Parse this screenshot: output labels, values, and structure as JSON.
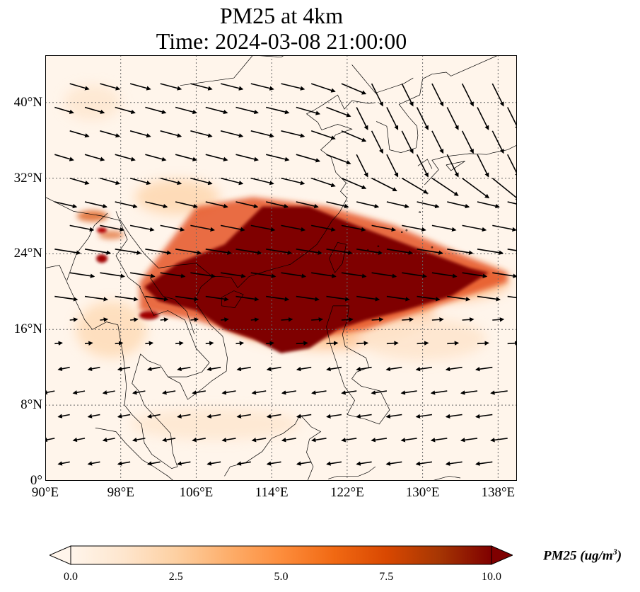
{
  "title": {
    "line1": "PM25 at 4km",
    "line2": "Time: 2024-03-08 21:00:00"
  },
  "map": {
    "projection": "PlateCarree",
    "lon_range": [
      90,
      140
    ],
    "lat_range": [
      0,
      45
    ],
    "gridlines": "dotted",
    "coastlines": true,
    "wind_vectors": true,
    "lat_ticks": [
      {
        "value": 0,
        "label": "0°"
      },
      {
        "value": 8,
        "label": "8°N"
      },
      {
        "value": 16,
        "label": "16°N"
      },
      {
        "value": 24,
        "label": "24°N"
      },
      {
        "value": 32,
        "label": "32°N"
      },
      {
        "value": 40,
        "label": "40°N"
      }
    ],
    "lon_ticks": [
      {
        "value": 90,
        "label": "90°E"
      },
      {
        "value": 98,
        "label": "98°E"
      },
      {
        "value": 106,
        "label": "106°E"
      },
      {
        "value": 114,
        "label": "114°E"
      },
      {
        "value": 122,
        "label": "122°E"
      },
      {
        "value": 130,
        "label": "130°E"
      },
      {
        "value": 138,
        "label": "138°E"
      }
    ],
    "plume_core_color": "#7f0000",
    "background_color": "#fff5eb"
  },
  "colorbar": {
    "label": "PM25 (ug/m",
    "label_sup": "3",
    "label_end": ")",
    "range": [
      0.0,
      10.0
    ],
    "extend": "both",
    "ticks": [
      "0.0",
      "2.5",
      "5.0",
      "7.5",
      "10.0"
    ],
    "colormap": [
      "#fff5eb",
      "#fee6ce",
      "#fdd0a2",
      "#fdae6b",
      "#fd8d3c",
      "#f16913",
      "#d94801",
      "#a63603",
      "#7f0000"
    ]
  }
}
